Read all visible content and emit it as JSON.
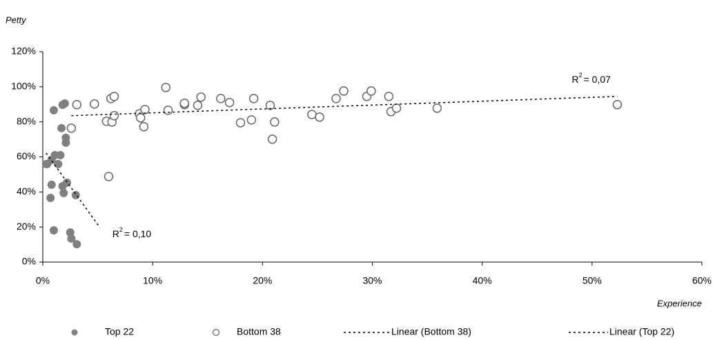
{
  "chart_data": {
    "type": "scatter",
    "y_axis_label": "Petty",
    "x_axis_label": "Experience",
    "xlim": [
      0,
      60
    ],
    "ylim": [
      0,
      120
    ],
    "xticks": [
      {
        "value": 0,
        "label": "0%"
      },
      {
        "value": 10,
        "label": "10%"
      },
      {
        "value": 20,
        "label": "20%"
      },
      {
        "value": 30,
        "label": "30%"
      },
      {
        "value": 40,
        "label": "40%"
      },
      {
        "value": 50,
        "label": "50%"
      },
      {
        "value": 60,
        "label": "60%"
      }
    ],
    "yticks": [
      {
        "value": 0,
        "label": "0%"
      },
      {
        "value": 20,
        "label": "20%"
      },
      {
        "value": 40,
        "label": "40%"
      },
      {
        "value": 60,
        "label": "60%"
      },
      {
        "value": 80,
        "label": "80%"
      },
      {
        "value": 100,
        "label": "100%"
      },
      {
        "value": 120,
        "label": "120%"
      }
    ],
    "grid": false,
    "legend": "bottom",
    "series": [
      {
        "name": "Top 22",
        "kind": "scatter",
        "color": "#808080",
        "filled": true,
        "x": [
          1.0,
          1.8,
          2.0,
          1.7,
          2.1,
          2.1,
          0.4,
          0.8,
          1.1,
          1.6,
          1.4,
          0.8,
          0.7,
          1.8,
          2.2,
          1.9,
          3.0,
          1.0,
          2.5,
          2.6,
          3.1,
          0.3
        ],
        "values": [
          86.6,
          89.7,
          90.5,
          76.4,
          70.9,
          68.1,
          55.9,
          58.3,
          61.0,
          61.0,
          55.9,
          44.1,
          36.6,
          43.3,
          45.3,
          39.4,
          38.2,
          18.1,
          16.9,
          13.4,
          10.2,
          55.9
        ]
      },
      {
        "name": "Bottom 38",
        "kind": "scatter",
        "color": "#666666",
        "filled": false,
        "x": [
          3.1,
          4.7,
          5.8,
          6.0,
          6.2,
          6.5,
          6.3,
          6.5,
          2.6,
          8.8,
          8.9,
          9.3,
          9.2,
          11.2,
          11.4,
          12.9,
          12.9,
          14.1,
          14.4,
          16.2,
          17.0,
          18.0,
          19.0,
          19.2,
          20.7,
          20.9,
          21.1,
          24.5,
          25.2,
          26.7,
          27.4,
          29.5,
          29.9,
          31.5,
          31.7,
          32.2,
          35.9,
          52.3
        ],
        "values": [
          89.8,
          90.2,
          80.3,
          48.8,
          93.3,
          94.5,
          79.9,
          83.5,
          76.4,
          84.6,
          82.3,
          87.0,
          77.2,
          99.6,
          86.6,
          89.8,
          90.6,
          89.4,
          94.1,
          93.3,
          91.0,
          79.5,
          81.1,
          93.3,
          89.4,
          70.1,
          79.9,
          84.2,
          82.7,
          93.3,
          97.6,
          94.5,
          97.6,
          94.5,
          85.8,
          87.8,
          87.8,
          89.8
        ]
      },
      {
        "name": "Linear (Bottom 38)",
        "kind": "line",
        "color": "#000000",
        "x": [
          2.6,
          52.3
        ],
        "values": [
          83.5,
          94.5
        ]
      },
      {
        "name": "Linear (Top 22)",
        "kind": "line",
        "color": "#000000",
        "x": [
          0.3,
          5.2
        ],
        "values": [
          62.2,
          19.7
        ]
      }
    ],
    "annotations": [
      {
        "text": "R",
        "superscript": "2",
        "suffix": "= 0,07"
      },
      {
        "text": "R",
        "superscript": "2",
        "suffix": "= 0,10"
      }
    ]
  }
}
